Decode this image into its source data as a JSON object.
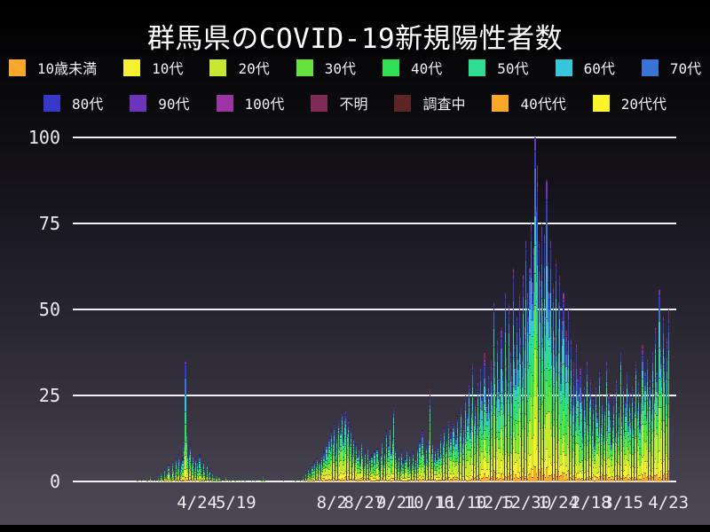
{
  "chart_data": {
    "type": "bar",
    "subtype": "stacked-daily-bars",
    "title": "群馬県のCOVID-19新規陽性者数",
    "xlabel": "",
    "ylabel": "",
    "ylim": [
      0,
      100
    ],
    "yticks": [
      0,
      25,
      50,
      75,
      100
    ],
    "grid": "horizontal-white-lines",
    "legend_position": "top-two-rows",
    "background": {
      "top": "#000000",
      "bottom": "#4b4754",
      "gridline": "#f2f0f4",
      "tick_text": "#eceaf0",
      "title_text": "#ffffff"
    },
    "series": [
      {
        "name": "10歳未満",
        "color": "#f9a72b",
        "base_share": 0.05
      },
      {
        "name": "10代",
        "color": "#f7f032",
        "base_share": 0.1
      },
      {
        "name": "20代",
        "color": "#c6e831",
        "base_share": 0.21
      },
      {
        "name": "30代",
        "color": "#65e33c",
        "base_share": 0.14
      },
      {
        "name": "40代",
        "color": "#31df55",
        "base_share": 0.13
      },
      {
        "name": "50代",
        "color": "#2cdc92",
        "base_share": 0.11
      },
      {
        "name": "60代",
        "color": "#38c6dd",
        "base_share": 0.08
      },
      {
        "name": "70代",
        "color": "#3b72d6",
        "base_share": 0.07
      },
      {
        "name": "80代",
        "color": "#3838c8",
        "base_share": 0.05
      },
      {
        "name": "90代",
        "color": "#6b34ba",
        "base_share": 0.027
      },
      {
        "name": "100代",
        "color": "#9d34a3",
        "base_share": 0.006
      },
      {
        "name": "不明",
        "color": "#7e2c55",
        "base_share": 0.012
      },
      {
        "name": "調査中",
        "color": "#5e2525",
        "base_share": 0.005
      },
      {
        "name": "40代代",
        "color": "#f9a72b",
        "base_share": 0.0
      },
      {
        "name": "20代代",
        "color": "#fcf42b",
        "base_share": 0.0
      }
    ],
    "xticks": [
      {
        "label": "4/24",
        "day": 46
      },
      {
        "label": "5/19",
        "day": 76
      },
      {
        "label": "8/2",
        "day": 150
      },
      {
        "label": "8/27",
        "day": 175
      },
      {
        "label": "9/21",
        "day": 200
      },
      {
        "label": "10/16",
        "day": 225
      },
      {
        "label": "11/10",
        "day": 250
      },
      {
        "label": "12/5",
        "day": 275
      },
      {
        "label": "12/30",
        "day": 300
      },
      {
        "label": "1/24",
        "day": 325
      },
      {
        "label": "2/18",
        "day": 350
      },
      {
        "label": "3/15",
        "day": 375
      },
      {
        "label": "4/23",
        "day": 410
      }
    ],
    "daily_totals": [
      1,
      0,
      0,
      1,
      0,
      0,
      0,
      1,
      1,
      0,
      2,
      0,
      1,
      0,
      1,
      0,
      2,
      1,
      3,
      2,
      1,
      4,
      2,
      3,
      5,
      3,
      2,
      6,
      4,
      3,
      7,
      5,
      8,
      4,
      6,
      7,
      12,
      35,
      15,
      8,
      9,
      11,
      6,
      8,
      5,
      7,
      6,
      4,
      8,
      5,
      3,
      6,
      4,
      2,
      5,
      3,
      4,
      2,
      3,
      2,
      1,
      2,
      1,
      2,
      1,
      1,
      0,
      1,
      2,
      0,
      1,
      0,
      1,
      0,
      0,
      1,
      1,
      0,
      0,
      0,
      1,
      0,
      0,
      1,
      0,
      0,
      0,
      0,
      1,
      0,
      0,
      1,
      0,
      0,
      0,
      0,
      1,
      2,
      1,
      0,
      0,
      0,
      0,
      0,
      0,
      0,
      0,
      0,
      0,
      0,
      0,
      0,
      0,
      1,
      0,
      0,
      0,
      0,
      0,
      0,
      0,
      0,
      1,
      0,
      0,
      0,
      1,
      0,
      2,
      1,
      3,
      2,
      4,
      3,
      2,
      5,
      4,
      6,
      5,
      7,
      6,
      6,
      8,
      5,
      9,
      7,
      11,
      8,
      13,
      10,
      15,
      12,
      17,
      9,
      14,
      18,
      11,
      16,
      20,
      13,
      19,
      21,
      15,
      18,
      12,
      16,
      9,
      13,
      7,
      11,
      8,
      10,
      6,
      12,
      8,
      5,
      9,
      6,
      11,
      7,
      4,
      8,
      5,
      9,
      6,
      10,
      7,
      4,
      8,
      12,
      6,
      9,
      15,
      8,
      11,
      17,
      9,
      13,
      22,
      10,
      7,
      5,
      8,
      4,
      9,
      6,
      3,
      7,
      10,
      5,
      8,
      4,
      6,
      9,
      5,
      7,
      10,
      6,
      12,
      8,
      15,
      9,
      6,
      11,
      7,
      13,
      27,
      9,
      12,
      8,
      10,
      7,
      11,
      8,
      14,
      9,
      12,
      16,
      10,
      13,
      18,
      11,
      15,
      9,
      17,
      12,
      14,
      19,
      11,
      16,
      22,
      13,
      18,
      25,
      15,
      20,
      28,
      16,
      23,
      35,
      19,
      24,
      17,
      29,
      21,
      33,
      25,
      19,
      38,
      27,
      22,
      31,
      24,
      36,
      28,
      52,
      35,
      26,
      42,
      30,
      24,
      45,
      33,
      27,
      55,
      36,
      29,
      52,
      38,
      31,
      62,
      40,
      33,
      48,
      36,
      55,
      42,
      35,
      60,
      45,
      70,
      55,
      48,
      62,
      75,
      58,
      68,
      100,
      80,
      92,
      70,
      60,
      75,
      52,
      72,
      48,
      88,
      64,
      55,
      70,
      45,
      58,
      42,
      65,
      38,
      52,
      60,
      35,
      48,
      55,
      30,
      44,
      38,
      50,
      28,
      42,
      25,
      35,
      22,
      40,
      30,
      18,
      33,
      26,
      15,
      28,
      22,
      35,
      18,
      25,
      30,
      16,
      24,
      12,
      28,
      20,
      15,
      32,
      18,
      25,
      14,
      22,
      35,
      17,
      26,
      20,
      12,
      18,
      25,
      14,
      30,
      16,
      22,
      38,
      19,
      28,
      15,
      24,
      32,
      18,
      26,
      20,
      28,
      16,
      24,
      35,
      22,
      30,
      18,
      26,
      40,
      24,
      32,
      20,
      36,
      28,
      30,
      22,
      38,
      26,
      45,
      32,
      24,
      56,
      40,
      34,
      48,
      36,
      30,
      42,
      50
    ]
  }
}
